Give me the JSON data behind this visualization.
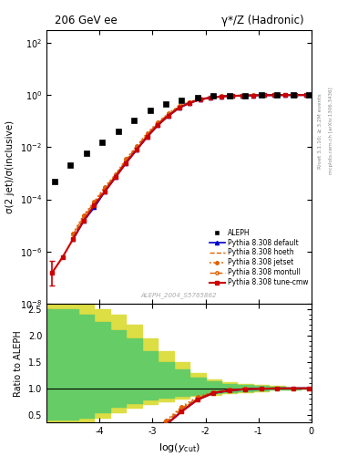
{
  "title_left": "206 GeV ee",
  "title_right": "γ*/Z (Hadronic)",
  "ylabel_main": "σ(2 jet)/σ(inclusive)",
  "ylabel_ratio": "Ratio to ALEPH",
  "xlabel": "log(y_{cut})",
  "watermark": "ALEPH_2004_S5765862",
  "right_label": "mcplots.cern.ch [arXiv:1306.3436]",
  "right_label2": "Rivet 3.1.10; ≥ 3.2M events",
  "xlim": [
    -5.0,
    0.0
  ],
  "ylim_main": [
    1e-08,
    300.0
  ],
  "ylim_ratio": [
    0.35,
    2.6
  ],
  "ratio_yticks": [
    0.5,
    1.0,
    2.0
  ],
  "ratio_yticklabels": [
    "0.5",
    "1",
    "2"
  ],
  "aleph_x": [
    -4.85,
    -4.55,
    -4.25,
    -3.95,
    -3.65,
    -3.35,
    -3.05,
    -2.75,
    -2.45,
    -2.15,
    -1.85,
    -1.55,
    -1.25,
    -0.95,
    -0.65,
    -0.35,
    -0.05
  ],
  "aleph_y": [
    0.0005,
    0.002,
    0.006,
    0.015,
    0.04,
    0.11,
    0.25,
    0.45,
    0.65,
    0.8,
    0.9,
    0.95,
    0.97,
    0.985,
    0.992,
    0.996,
    0.998
  ],
  "tune_cmw_x": [
    -4.9,
    -4.7,
    -4.5,
    -4.3,
    -4.1,
    -3.9,
    -3.7,
    -3.5,
    -3.3,
    -3.1,
    -2.9,
    -2.7,
    -2.5,
    -2.3,
    -2.1,
    -1.9,
    -1.7,
    -1.5,
    -1.3,
    -1.1,
    -0.9,
    -0.7,
    -0.5,
    -0.3,
    -0.1
  ],
  "tune_cmw_y": [
    1.5e-07,
    6e-07,
    3e-06,
    1.5e-05,
    6e-05,
    0.0002,
    0.0007,
    0.0025,
    0.008,
    0.025,
    0.07,
    0.16,
    0.32,
    0.5,
    0.67,
    0.8,
    0.88,
    0.92,
    0.95,
    0.97,
    0.98,
    0.988,
    0.993,
    0.996,
    0.998
  ],
  "default_x": [
    -4.5,
    -4.3,
    -4.1,
    -3.9,
    -3.7,
    -3.5,
    -3.3,
    -3.1,
    -2.9,
    -2.7,
    -2.5,
    -2.3,
    -2.1,
    -1.9,
    -1.7,
    -1.5,
    -1.3,
    -1.1,
    -0.9,
    -0.7,
    -0.5,
    -0.3,
    -0.1
  ],
  "default_y": [
    3e-06,
    1.5e-05,
    5e-05,
    0.0002,
    0.0007,
    0.0025,
    0.008,
    0.025,
    0.07,
    0.16,
    0.32,
    0.5,
    0.67,
    0.8,
    0.88,
    0.92,
    0.95,
    0.97,
    0.98,
    0.988,
    0.993,
    0.996,
    0.998
  ],
  "hoeth_x": [
    -4.5,
    -4.3,
    -4.1,
    -3.9,
    -3.7,
    -3.5,
    -3.3,
    -3.1,
    -2.9,
    -2.7,
    -2.5,
    -2.3,
    -2.1,
    -1.9,
    -1.7,
    -1.5,
    -1.3,
    -1.1,
    -0.9,
    -0.7,
    -0.5,
    -0.3,
    -0.1
  ],
  "hoeth_y": [
    4e-06,
    2e-05,
    7e-05,
    0.00025,
    0.0008,
    0.003,
    0.01,
    0.03,
    0.08,
    0.18,
    0.35,
    0.52,
    0.69,
    0.81,
    0.89,
    0.93,
    0.955,
    0.972,
    0.982,
    0.989,
    0.994,
    0.997,
    0.998
  ],
  "jetset_x": [
    -4.5,
    -4.3,
    -4.1,
    -3.9,
    -3.7,
    -3.5,
    -3.3,
    -3.1,
    -2.9,
    -2.7,
    -2.5,
    -2.3,
    -2.1,
    -1.9,
    -1.7,
    -1.5,
    -1.3,
    -1.1,
    -0.9,
    -0.7,
    -0.5,
    -0.3,
    -0.1
  ],
  "jetset_y": [
    5e-06,
    2.5e-05,
    8e-05,
    0.0003,
    0.0009,
    0.0035,
    0.011,
    0.035,
    0.09,
    0.2,
    0.38,
    0.55,
    0.71,
    0.82,
    0.9,
    0.935,
    0.958,
    0.973,
    0.983,
    0.99,
    0.994,
    0.997,
    0.998
  ],
  "montull_x": [
    -4.5,
    -4.3,
    -4.1,
    -3.9,
    -3.7,
    -3.5,
    -3.3,
    -3.1,
    -2.9,
    -2.7,
    -2.5,
    -2.3,
    -2.1,
    -1.9,
    -1.7,
    -1.5,
    -1.3,
    -1.1,
    -0.9,
    -0.7,
    -0.5,
    -0.3,
    -0.1
  ],
  "montull_y": [
    4.5e-06,
    2.2e-05,
    7.5e-05,
    0.00028,
    0.00085,
    0.0032,
    0.0105,
    0.032,
    0.085,
    0.19,
    0.36,
    0.53,
    0.7,
    0.81,
    0.89,
    0.93,
    0.955,
    0.972,
    0.982,
    0.989,
    0.993,
    0.997,
    0.998
  ],
  "band_x_edges": [
    -5.0,
    -4.7,
    -4.4,
    -4.1,
    -3.8,
    -3.5,
    -3.2,
    -2.9,
    -2.6,
    -2.3,
    -2.0,
    -1.7,
    -1.4,
    -1.1,
    -0.8,
    -0.5,
    -0.2,
    0.0
  ],
  "band_green_lo": [
    0.4,
    0.4,
    0.45,
    0.55,
    0.65,
    0.72,
    0.78,
    0.82,
    0.85,
    0.88,
    0.91,
    0.93,
    0.95,
    0.96,
    0.97,
    0.98,
    0.99,
    1.0
  ],
  "band_green_hi": [
    2.5,
    2.5,
    2.4,
    2.25,
    2.1,
    1.95,
    1.7,
    1.5,
    1.35,
    1.2,
    1.13,
    1.08,
    1.06,
    1.05,
    1.03,
    1.02,
    1.01,
    1.0
  ],
  "band_yellow_lo": [
    0.35,
    0.35,
    0.38,
    0.45,
    0.55,
    0.64,
    0.71,
    0.76,
    0.81,
    0.85,
    0.88,
    0.91,
    0.93,
    0.95,
    0.97,
    0.98,
    0.99,
    1.0
  ],
  "band_yellow_hi": [
    2.6,
    2.6,
    2.6,
    2.5,
    2.4,
    2.2,
    1.95,
    1.7,
    1.5,
    1.28,
    1.17,
    1.11,
    1.08,
    1.06,
    1.04,
    1.02,
    1.01,
    1.0
  ],
  "colors": {
    "aleph": "#000000",
    "tune_cmw": "#cc0000",
    "default": "#0000cc",
    "hoeth": "#e06000",
    "jetset": "#e06000",
    "montull": "#e06000",
    "band_green": "#66cc66",
    "band_yellow": "#dddd44"
  }
}
